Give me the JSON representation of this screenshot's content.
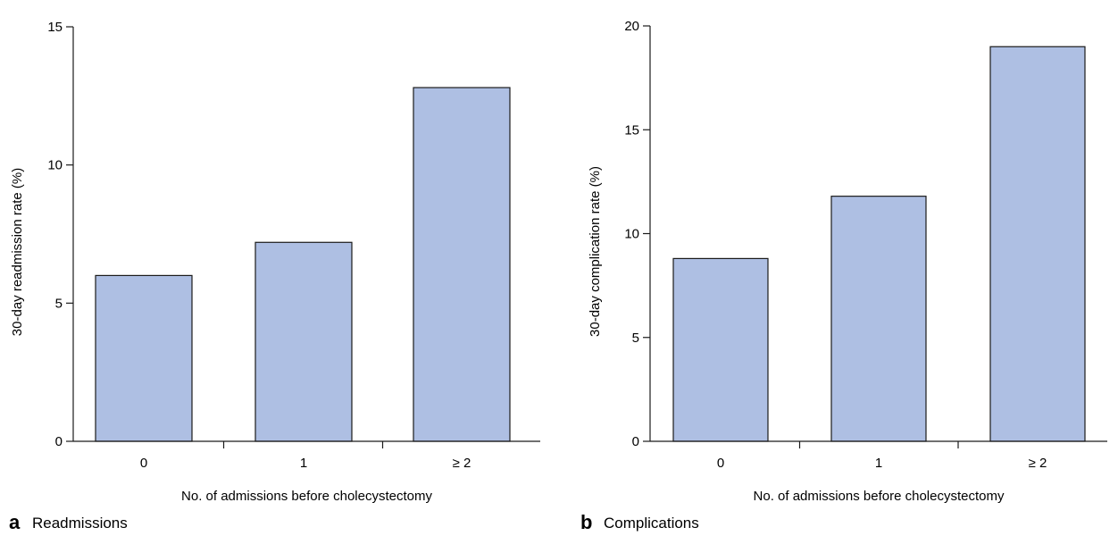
{
  "chart_data": [
    {
      "type": "bar",
      "panel_letter": "a",
      "panel_title": "Readmissions",
      "categories": [
        "0",
        "1",
        "≥ 2"
      ],
      "values": [
        6.0,
        7.2,
        12.8
      ],
      "xlabel": "No. of admissions before cholecystectomy",
      "ylabel": "30-day readmission rate (%)",
      "ylim": [
        0,
        15
      ],
      "yticks": [
        0,
        5,
        10,
        15
      ],
      "grid": false,
      "bar_color": "#aebfe3"
    },
    {
      "type": "bar",
      "panel_letter": "b",
      "panel_title": "Complications",
      "categories": [
        "0",
        "1",
        "≥ 2"
      ],
      "values": [
        8.8,
        11.8,
        19.0
      ],
      "xlabel": "No. of admissions before cholecystectomy",
      "ylabel": "30-day complication rate (%)",
      "ylim": [
        0,
        20
      ],
      "yticks": [
        0,
        5,
        10,
        15,
        20
      ],
      "grid": false,
      "bar_color": "#aebfe3"
    }
  ]
}
